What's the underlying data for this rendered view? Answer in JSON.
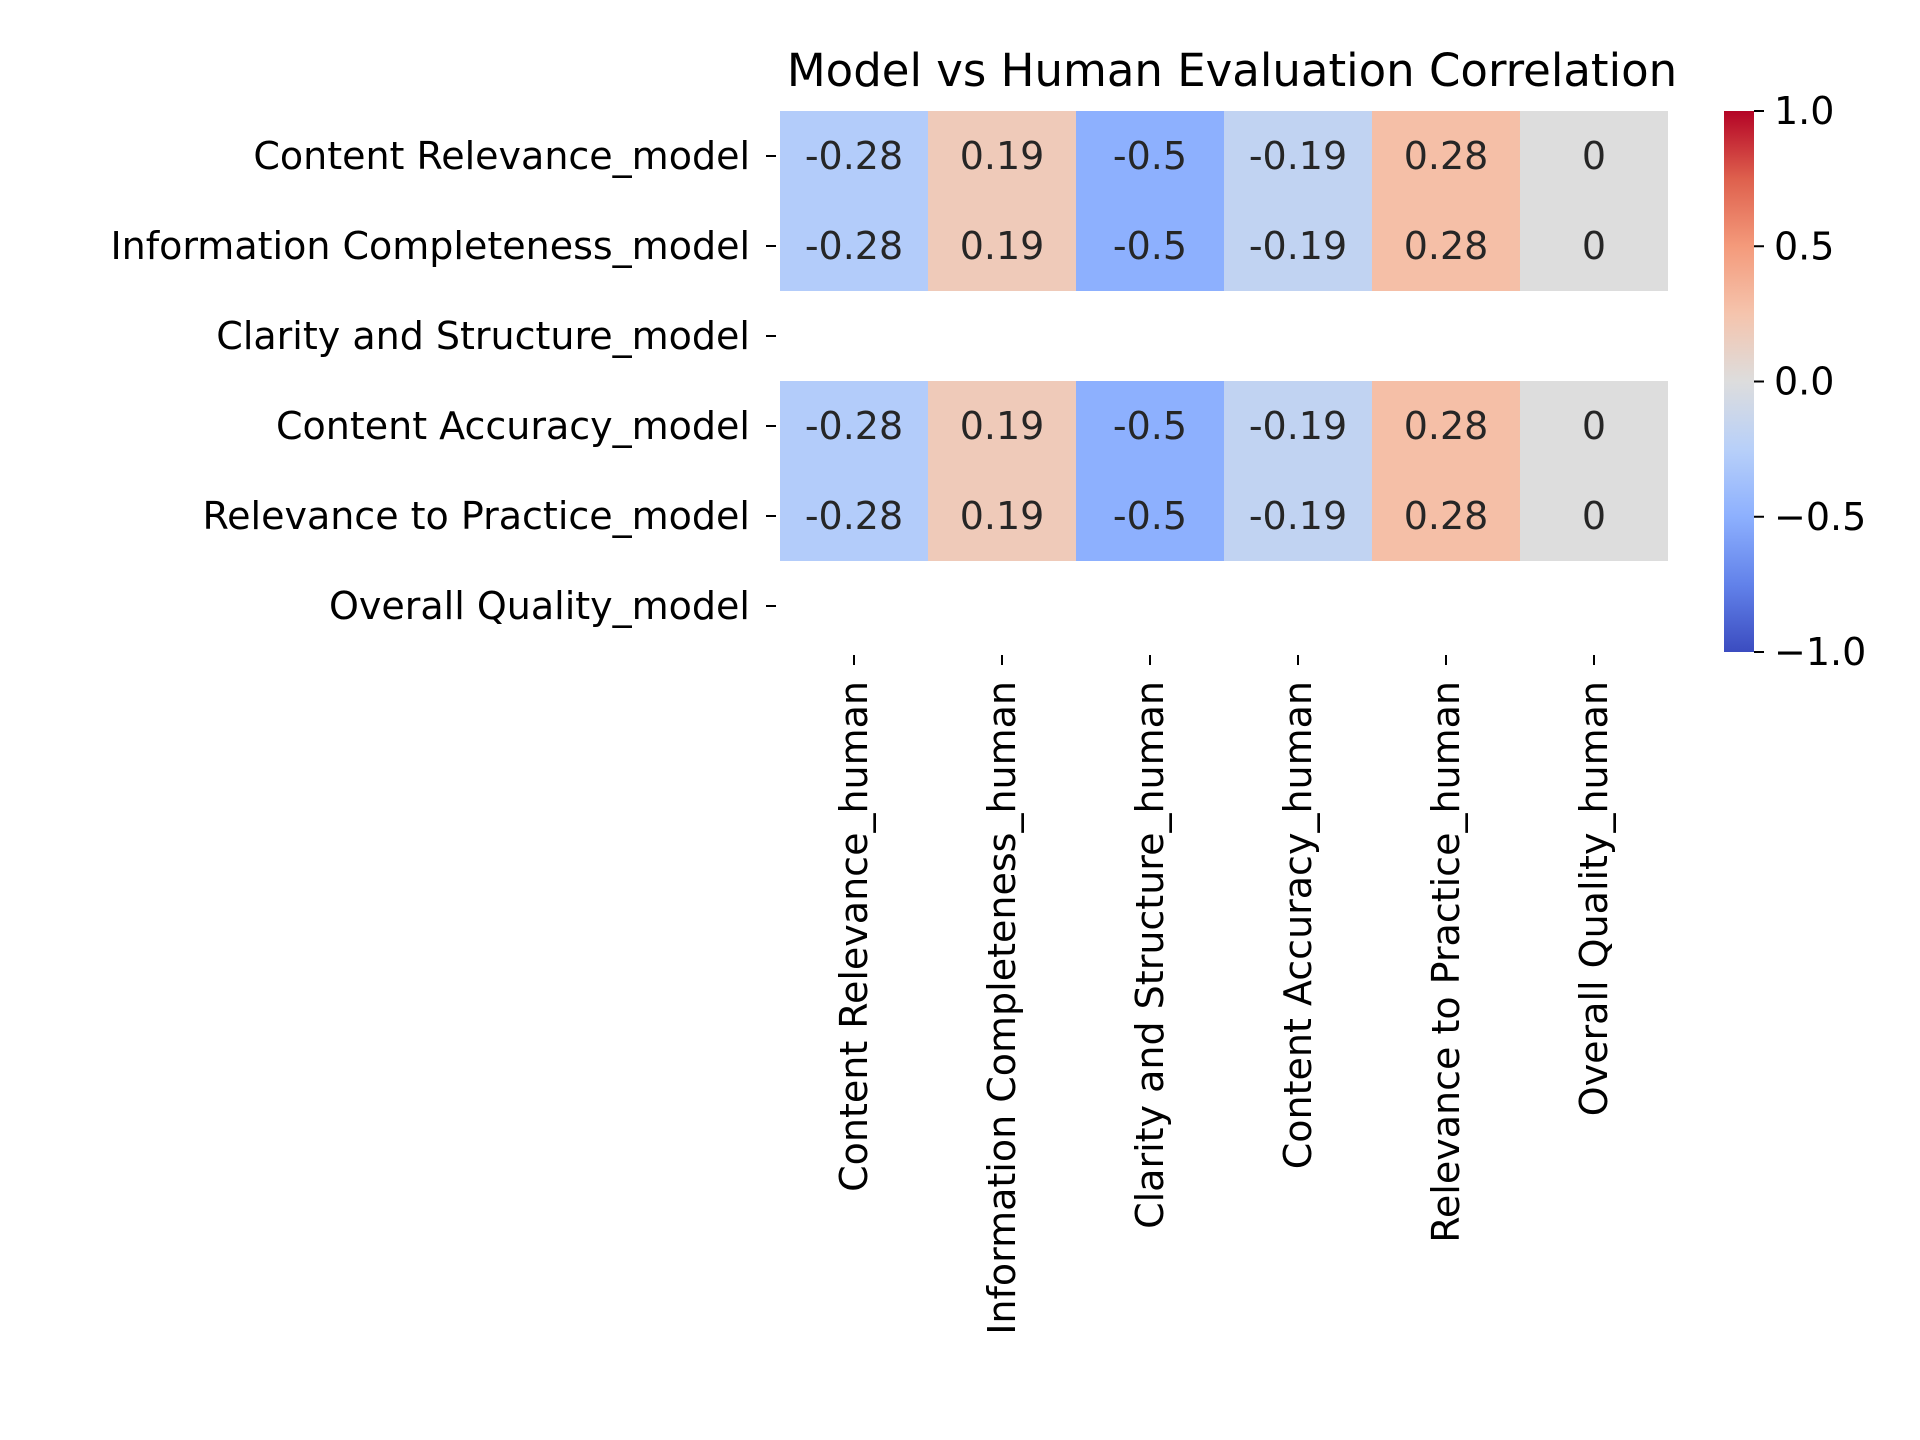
{
  "chart_data": {
    "type": "heatmap",
    "title": "Model vs Human Evaluation Correlation",
    "xlabel": "",
    "ylabel": "",
    "rows": [
      "Content Relevance_model",
      "Information Completeness_model",
      "Clarity and Structure_model",
      "Content Accuracy_model",
      "Relevance to Practice_model",
      "Overall Quality_model"
    ],
    "columns": [
      "Content Relevance_human",
      "Information Completeness_human",
      "Clarity and Structure_human",
      "Content Accuracy_human",
      "Relevance to Practice_human",
      "Overall Quality_human"
    ],
    "values": [
      [
        -0.28,
        0.19,
        -0.5,
        -0.19,
        0.28,
        0
      ],
      [
        -0.28,
        0.19,
        -0.5,
        -0.19,
        0.28,
        0
      ],
      [
        null,
        null,
        null,
        null,
        null,
        null
      ],
      [
        -0.28,
        0.19,
        -0.5,
        -0.19,
        0.28,
        0
      ],
      [
        -0.28,
        0.19,
        -0.5,
        -0.19,
        0.28,
        0
      ],
      [
        null,
        null,
        null,
        null,
        null,
        null
      ]
    ],
    "cell_labels": [
      [
        "-0.28",
        "0.19",
        "-0.5",
        "-0.19",
        "0.28",
        "0"
      ],
      [
        "-0.28",
        "0.19",
        "-0.5",
        "-0.19",
        "0.28",
        "0"
      ],
      [
        "",
        "",
        "",
        "",
        "",
        ""
      ],
      [
        "-0.28",
        "0.19",
        "-0.5",
        "-0.19",
        "0.28",
        "0"
      ],
      [
        "-0.28",
        "0.19",
        "-0.5",
        "-0.19",
        "0.28",
        "0"
      ],
      [
        "",
        "",
        "",
        "",
        "",
        ""
      ]
    ],
    "colormap": "coolwarm",
    "vmin": -1.0,
    "vmax": 1.0,
    "colorbar_ticks": [
      1.0,
      0.5,
      0.0,
      -0.5,
      -1.0
    ],
    "colorbar_tick_labels": [
      "1.0",
      "0.5",
      "0.0",
      "−0.5",
      "−1.0"
    ],
    "annotations_shown": true,
    "legend": "colorbar-right"
  }
}
